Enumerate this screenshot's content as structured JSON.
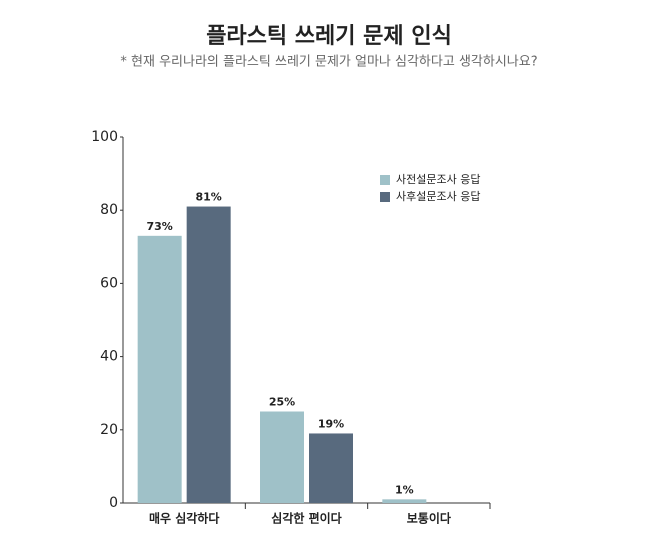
{
  "chart_data": {
    "type": "bar",
    "title": "플라스틱 쓰레기 문제 인식",
    "subtitle": "* 현재 우리나라의 플라스틱 쓰레기 문제가 얼마나 심각하다고 생각하시나요?",
    "categories": [
      "매우 심각하다",
      "심각한 편이다",
      "보통이다"
    ],
    "series": [
      {
        "name": "사전설문조사 응답",
        "color": "#9fc1c8",
        "values": [
          73,
          25,
          1
        ],
        "value_labels": [
          "73%",
          "25%",
          "1%"
        ]
      },
      {
        "name": "사후설문조사 응답",
        "color": "#586a7e",
        "values": [
          81,
          19,
          null
        ],
        "value_labels": [
          "81%",
          "19%",
          null
        ]
      }
    ],
    "ylim": [
      0,
      100
    ],
    "yticks": [
      0,
      20,
      40,
      60,
      80,
      100
    ],
    "grid": false,
    "legend": "upper right"
  }
}
